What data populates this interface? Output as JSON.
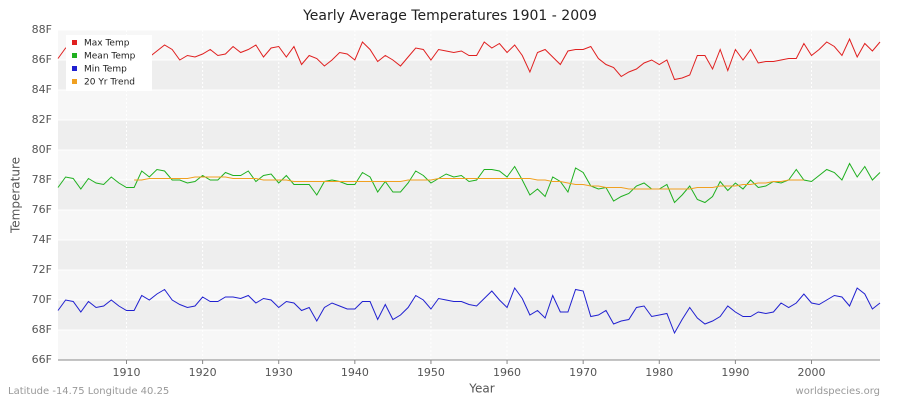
{
  "chart_data": {
    "type": "line",
    "title": "Yearly Average Temperatures 1901 - 2009",
    "x_label": "Year",
    "y_label": "Temperature",
    "footer_left": "Latitude -14.75 Longitude 40.25",
    "footer_right": "worldspecies.org",
    "legend": "upper-left",
    "grid": true,
    "xlim": [
      1901,
      2009
    ],
    "xticks": [
      1910,
      1920,
      1930,
      1940,
      1950,
      1960,
      1970,
      1980,
      1990,
      2000
    ],
    "ylim": [
      66,
      88
    ],
    "yticks": [
      {
        "value": 66,
        "label": "66F"
      },
      {
        "value": 68,
        "label": "68F"
      },
      {
        "value": 70,
        "label": "70F"
      },
      {
        "value": 72,
        "label": "72F"
      },
      {
        "value": 74,
        "label": "74F"
      },
      {
        "value": 76,
        "label": "76F"
      },
      {
        "value": 78,
        "label": "78F"
      },
      {
        "value": 80,
        "label": "80F"
      },
      {
        "value": 82,
        "label": "82F"
      },
      {
        "value": 84,
        "label": "84F"
      },
      {
        "value": 86,
        "label": "86F"
      },
      {
        "value": 88,
        "label": "88F"
      }
    ],
    "x": [
      1901,
      1902,
      1903,
      1904,
      1905,
      1906,
      1907,
      1908,
      1909,
      1910,
      1911,
      1912,
      1913,
      1914,
      1915,
      1916,
      1917,
      1918,
      1919,
      1920,
      1921,
      1922,
      1923,
      1924,
      1925,
      1926,
      1927,
      1928,
      1929,
      1930,
      1931,
      1932,
      1933,
      1934,
      1935,
      1936,
      1937,
      1938,
      1939,
      1940,
      1941,
      1942,
      1943,
      1944,
      1945,
      1946,
      1947,
      1948,
      1949,
      1950,
      1951,
      1952,
      1953,
      1954,
      1955,
      1956,
      1957,
      1958,
      1959,
      1960,
      1961,
      1962,
      1963,
      1964,
      1965,
      1966,
      1967,
      1968,
      1969,
      1970,
      1971,
      1972,
      1973,
      1974,
      1975,
      1976,
      1977,
      1978,
      1979,
      1980,
      1981,
      1982,
      1983,
      1984,
      1985,
      1986,
      1987,
      1988,
      1989,
      1990,
      1991,
      1992,
      1993,
      1994,
      1995,
      1996,
      1997,
      1998,
      1999,
      2000,
      2001,
      2002,
      2003,
      2004,
      2005,
      2006,
      2007,
      2008,
      2009
    ],
    "series": [
      {
        "name": "Max Temp",
        "color": "#e02020",
        "values": [
          86.1,
          86.8,
          86.5,
          86.7,
          86.2,
          86.9,
          86.3,
          86.6,
          86.1,
          86.4,
          86.5,
          86.9,
          86.2,
          86.6,
          87.0,
          86.7,
          86.0,
          86.3,
          86.2,
          86.4,
          86.7,
          86.3,
          86.4,
          86.9,
          86.5,
          86.7,
          87.0,
          86.2,
          86.8,
          86.9,
          86.2,
          86.9,
          85.7,
          86.3,
          86.1,
          85.6,
          86.0,
          86.5,
          86.4,
          86.0,
          87.2,
          86.7,
          85.9,
          86.3,
          86.0,
          85.6,
          86.2,
          86.8,
          86.7,
          86.0,
          86.7,
          86.6,
          86.5,
          86.6,
          86.3,
          86.3,
          87.2,
          86.8,
          87.1,
          86.5,
          87.0,
          86.3,
          85.2,
          86.5,
          86.7,
          86.2,
          85.7,
          86.6,
          86.7,
          86.7,
          86.9,
          86.1,
          85.7,
          85.5,
          84.9,
          85.2,
          85.4,
          85.8,
          86.0,
          85.7,
          86.0,
          84.7,
          84.8,
          85.0,
          86.3,
          86.3,
          85.4,
          86.7,
          85.3,
          86.7,
          86.0,
          86.7,
          85.8,
          85.9,
          85.9,
          86.0,
          86.1,
          86.1,
          87.1,
          86.3,
          86.7,
          87.2,
          86.9,
          86.3,
          87.4,
          86.2,
          87.1,
          86.6,
          87.2
        ]
      },
      {
        "name": "Mean Temp",
        "color": "#20b020",
        "values": [
          77.5,
          78.2,
          78.1,
          77.4,
          78.1,
          77.8,
          77.7,
          78.2,
          77.8,
          77.5,
          77.5,
          78.6,
          78.2,
          78.7,
          78.6,
          78.0,
          78.0,
          77.8,
          77.9,
          78.3,
          78.0,
          78.0,
          78.5,
          78.3,
          78.3,
          78.6,
          77.9,
          78.3,
          78.4,
          77.8,
          78.3,
          77.7,
          77.7,
          77.7,
          77.0,
          77.9,
          78.0,
          77.9,
          77.7,
          77.7,
          78.5,
          78.2,
          77.2,
          77.9,
          77.2,
          77.2,
          77.8,
          78.6,
          78.3,
          77.8,
          78.1,
          78.4,
          78.2,
          78.3,
          77.9,
          78.0,
          78.7,
          78.7,
          78.6,
          78.2,
          78.9,
          78.0,
          77.0,
          77.4,
          76.9,
          78.2,
          77.9,
          77.2,
          78.8,
          78.5,
          77.6,
          77.4,
          77.5,
          76.6,
          76.9,
          77.1,
          77.6,
          77.8,
          77.4,
          77.4,
          77.7,
          76.5,
          77.0,
          77.6,
          76.7,
          76.5,
          76.9,
          77.9,
          77.3,
          77.8,
          77.4,
          78.0,
          77.5,
          77.6,
          77.9,
          77.8,
          78.0,
          78.7,
          78.0,
          77.9,
          78.3,
          78.7,
          78.5,
          78.0,
          79.1,
          78.2,
          78.9,
          78.0,
          78.5
        ]
      },
      {
        "name": "Min Temp",
        "color": "#2020d0",
        "values": [
          69.3,
          70.0,
          69.9,
          69.2,
          69.9,
          69.5,
          69.6,
          70.0,
          69.6,
          69.3,
          69.3,
          70.3,
          70.0,
          70.4,
          70.7,
          70.0,
          69.7,
          69.5,
          69.6,
          70.2,
          69.9,
          69.9,
          70.2,
          70.2,
          70.1,
          70.3,
          69.8,
          70.1,
          70.0,
          69.5,
          69.9,
          69.8,
          69.3,
          69.5,
          68.6,
          69.5,
          69.8,
          69.6,
          69.4,
          69.4,
          69.9,
          69.9,
          68.7,
          69.7,
          68.7,
          69.0,
          69.5,
          70.3,
          70.0,
          69.4,
          70.1,
          70.0,
          69.9,
          69.9,
          69.7,
          69.6,
          70.1,
          70.6,
          70.0,
          69.5,
          70.8,
          70.1,
          69.0,
          69.3,
          68.8,
          70.3,
          69.2,
          69.2,
          70.7,
          70.6,
          68.9,
          69.0,
          69.3,
          68.4,
          68.6,
          68.7,
          69.5,
          69.6,
          68.9,
          69.0,
          69.1,
          67.8,
          68.7,
          69.5,
          68.8,
          68.4,
          68.6,
          68.9,
          69.6,
          69.2,
          68.9,
          68.9,
          69.2,
          69.1,
          69.2,
          69.8,
          69.5,
          69.8,
          70.4,
          69.8,
          69.7,
          70.0,
          70.3,
          70.2,
          69.6,
          70.8,
          70.4,
          69.4,
          69.8
        ]
      },
      {
        "name": "20 Yr Trend",
        "color": "#f0a020",
        "values": [
          null,
          null,
          null,
          null,
          null,
          null,
          null,
          null,
          null,
          null,
          78.0,
          78.0,
          78.1,
          78.1,
          78.1,
          78.1,
          78.1,
          78.1,
          78.2,
          78.2,
          78.2,
          78.2,
          78.2,
          78.1,
          78.1,
          78.1,
          78.1,
          78.0,
          78.0,
          78.0,
          78.0,
          77.9,
          77.9,
          77.9,
          77.9,
          77.9,
          77.9,
          77.9,
          77.9,
          77.9,
          77.9,
          77.9,
          77.9,
          77.9,
          77.9,
          77.9,
          78.0,
          78.0,
          78.0,
          78.0,
          78.1,
          78.1,
          78.1,
          78.1,
          78.1,
          78.1,
          78.1,
          78.1,
          78.1,
          78.1,
          78.1,
          78.1,
          78.1,
          78.0,
          78.0,
          77.9,
          77.9,
          77.8,
          77.7,
          77.7,
          77.6,
          77.6,
          77.5,
          77.5,
          77.5,
          77.4,
          77.4,
          77.4,
          77.4,
          77.4,
          77.4,
          77.4,
          77.4,
          77.4,
          77.5,
          77.5,
          77.5,
          77.6,
          77.6,
          77.6,
          77.7,
          77.7,
          77.8,
          77.8,
          77.9,
          77.9,
          78.0,
          78.0,
          78.0,
          null,
          null,
          null,
          null,
          null,
          null,
          null,
          null,
          null,
          null
        ]
      }
    ]
  }
}
